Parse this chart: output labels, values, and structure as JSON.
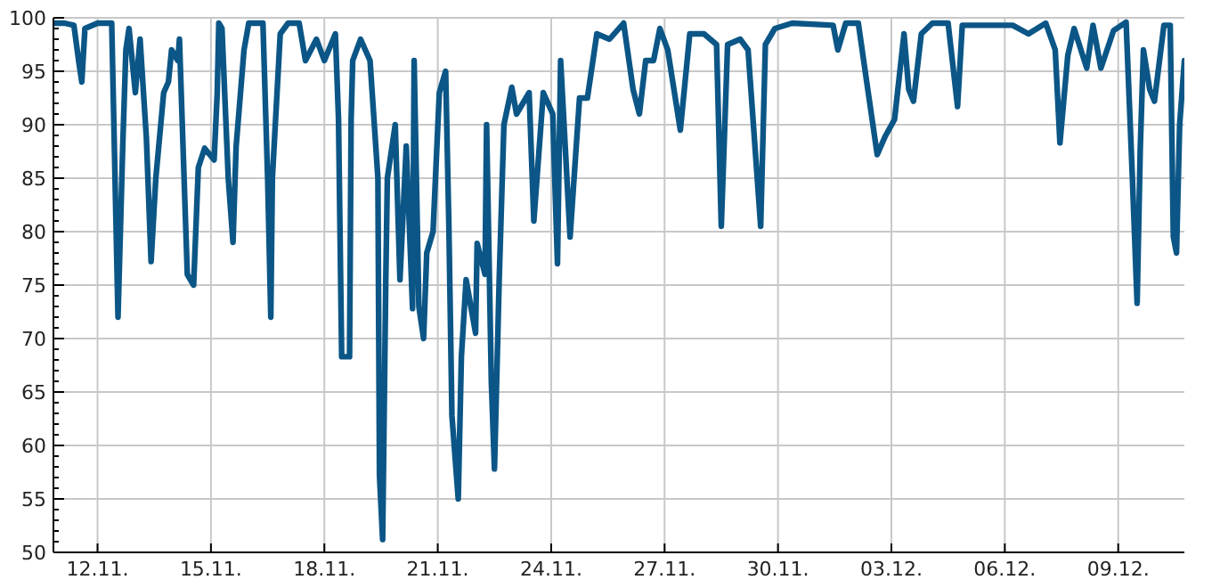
{
  "chart_data": {
    "type": "line",
    "grid": true,
    "marker": "none",
    "line_style": "solid",
    "xlim": [
      "--11-10T20:00",
      "--12-10T18:00"
    ],
    "xticks": [
      {
        "value": "--11-12",
        "label": "12.11."
      },
      {
        "value": "--11-15",
        "label": "15.11."
      },
      {
        "value": "--11-18",
        "label": "18.11."
      },
      {
        "value": "--11-21",
        "label": "21.11."
      },
      {
        "value": "--11-24",
        "label": "24.11."
      },
      {
        "value": "--11-27",
        "label": "27.11."
      },
      {
        "value": "--11-30",
        "label": "30.11."
      },
      {
        "value": "--12-03",
        "label": "03.12."
      },
      {
        "value": "--12-06",
        "label": "06.12."
      },
      {
        "value": "--12-09",
        "label": "09.12."
      }
    ],
    "ylim": [
      50,
      100
    ],
    "yticks": [
      50,
      {
        "value": 51,
        "label": null
      },
      {
        "value": 52,
        "label": null
      },
      {
        "value": 53,
        "label": null
      },
      {
        "value": 54,
        "label": null
      },
      55,
      {
        "value": 56,
        "label": null
      },
      {
        "value": 57,
        "label": null
      },
      {
        "value": 58,
        "label": null
      },
      {
        "value": 59,
        "label": null
      },
      60,
      {
        "value": 61,
        "label": null
      },
      {
        "value": 62,
        "label": null
      },
      {
        "value": 63,
        "label": null
      },
      {
        "value": 64,
        "label": null
      },
      65,
      {
        "value": 66,
        "label": null
      },
      {
        "value": 67,
        "label": null
      },
      {
        "value": 68,
        "label": null
      },
      {
        "value": 69,
        "label": null
      },
      70,
      {
        "value": 71,
        "label": null
      },
      {
        "value": 72,
        "label": null
      },
      {
        "value": 73,
        "label": null
      },
      {
        "value": 74,
        "label": null
      },
      75,
      {
        "value": 76,
        "label": null
      },
      {
        "value": 77,
        "label": null
      },
      {
        "value": 78,
        "label": null
      },
      {
        "value": 79,
        "label": null
      },
      80,
      {
        "value": 81,
        "label": null
      },
      {
        "value": 82,
        "label": null
      },
      {
        "value": 83,
        "label": null
      },
      {
        "value": 84,
        "label": null
      },
      85,
      {
        "value": 86,
        "label": null
      },
      {
        "value": 87,
        "label": null
      },
      {
        "value": 88,
        "label": null
      },
      {
        "value": 89,
        "label": null
      },
      90,
      {
        "value": 91,
        "label": null
      },
      {
        "value": 92,
        "label": null
      },
      {
        "value": 93,
        "label": null
      },
      {
        "value": 94,
        "label": null
      },
      95,
      {
        "value": 96,
        "label": null
      },
      {
        "value": 97,
        "label": null
      },
      {
        "value": 98,
        "label": null
      },
      {
        "value": 99,
        "label": null
      },
      100
    ],
    "series": [
      {
        "color": "#0b5686",
        "x": [
          "--11-10T20:00",
          "--11-11T03:00",
          "--11-11T09:00",
          "--11-11T12:00",
          "--11-11T14:00",
          "--11-11T16:00",
          "--11-12T00:00",
          "--11-12T09:00",
          "--11-12T13:00",
          "--11-12T16:00",
          "--11-12T18:00",
          "--11-12T20:00",
          "--11-13T00:00",
          "--11-13T03:00",
          "--11-13T07:00",
          "--11-13T10:00",
          "--11-13T13:00",
          "--11-13T18:00",
          "--11-13T21:00",
          "--11-13T23:00",
          "--11-14T03:00",
          "--11-14T04:00",
          "--11-14T09:00",
          "--11-14T13:00",
          "--11-14T16:00",
          "--11-14T20:00",
          "--11-15T02:00",
          "--11-15T04:00",
          "--11-15T05:00",
          "--11-15T07:00",
          "--11-15T11:00",
          "--11-15T14:00",
          "--11-15T16:00",
          "--11-15T21:00",
          "--11-16T00:00",
          "--11-16T09:00",
          "--11-16T12:00",
          "--11-16T14:00",
          "--11-16T15:00",
          "--11-16T20:00",
          "--11-17T01:00",
          "--11-17T08:00",
          "--11-17T12:00",
          "--11-17T19:00",
          "--11-18T00:00",
          "--11-18T07:00",
          "--11-18T09:00",
          "--11-18T11:00",
          "--11-18T16:00",
          "--11-18T17:00",
          "--11-18T18:00",
          "--11-18T23:00",
          "--11-19T05:00",
          "--11-19T10:00",
          "--11-19T11:00",
          "--11-19T13:00",
          "--11-19T15:00",
          "--11-19T16:00",
          "--11-19T21:00",
          "--11-20T00:00",
          "--11-20T04:00",
          "--11-20T08:00",
          "--11-20T09:00",
          "--11-20T12:00",
          "--11-20T15:00",
          "--11-20T17:00",
          "--11-20T21:00",
          "--11-21T01:00",
          "--11-21T05:00",
          "--11-21T07:00",
          "--11-21T09:00",
          "--11-21T13:00",
          "--11-21T15:00",
          "--11-21T18:00",
          "--11-22T00:00",
          "--11-22T01:00",
          "--11-22T06:00",
          "--11-22T07:00",
          "--11-22T10:00",
          "--11-22T12:00",
          "--11-22T15:00",
          "--11-22T18:00",
          "--11-22T23:00",
          "--11-23T02:00",
          "--11-23T10:00",
          "--11-23T13:00",
          "--11-23T19:00",
          "--11-24T01:00",
          "--11-24T04:00",
          "--11-24T06:00",
          "--11-24T12:00",
          "--11-24T18:00",
          "--11-24T23:00",
          "--11-25T05:00",
          "--11-25T13:00",
          "--11-25T22:00",
          "--11-26T04:00",
          "--11-26T08:00",
          "--11-26T12:00",
          "--11-26T17:00",
          "--11-26T21:00",
          "--11-27T02:00",
          "--11-27T10:00",
          "--11-27T16:00",
          "--11-28T01:00",
          "--11-28T09:00",
          "--11-28T12:00",
          "--11-28T16:00",
          "--11-29T00:00",
          "--11-29T05:00",
          "--11-29T13:00",
          "--11-29T16:00",
          "--11-29T22:00",
          "--11-30T09:00",
          "--12-01T11:00",
          "--12-01T14:00",
          "--12-01T19:00",
          "--12-02T03:00",
          "--12-02T09:00",
          "--12-02T15:00",
          "--12-02T20:00",
          "--12-03T02:00",
          "--12-03T08:00",
          "--12-03T11:00",
          "--12-03T14:00",
          "--12-03T19:00",
          "--12-04T02:00",
          "--12-04T12:00",
          "--12-04T18:00",
          "--12-04T21:00",
          "--12-05T11:00",
          "--12-06T05:00",
          "--12-06T15:00",
          "--12-07T02:00",
          "--12-07T08:00",
          "--12-07T11:00",
          "--12-07T16:00",
          "--12-07T20:00",
          "--12-08T04:00",
          "--12-08T08:00",
          "--12-08T13:00",
          "--12-08T21:00",
          "--12-09T05:00",
          "--12-09T09:00",
          "--12-09T12:00",
          "--12-09T14:00",
          "--12-09T16:00",
          "--12-09T20:00",
          "--12-09T23:00",
          "--12-10T05:00",
          "--12-10T09:00",
          "--12-10T11:00",
          "--12-10T13:00",
          "--12-10T15:00",
          "--12-10T18:00"
        ],
        "values": [
          99.5,
          99.5,
          99.3,
          96,
          94,
          99,
          99.5,
          99.5,
          72,
          88,
          97,
          99,
          93,
          98,
          88.8,
          77.2,
          85,
          93,
          94,
          97,
          96,
          98,
          76,
          75,
          86,
          87.8,
          86.7,
          93,
          99.5,
          99,
          85,
          79,
          88,
          97,
          99.5,
          99.5,
          85,
          72,
          85,
          98.5,
          99.5,
          99.5,
          96,
          98,
          96,
          98.5,
          90.5,
          68.3,
          68.3,
          90.5,
          96,
          98,
          96,
          85,
          57.2,
          51.2,
          75.5,
          85,
          90,
          75.5,
          88,
          72.8,
          96,
          73,
          70,
          78,
          80,
          93,
          95,
          81,
          62.8,
          55,
          68.3,
          75.5,
          70.5,
          78.9,
          76,
          90,
          66,
          57.8,
          75.5,
          90,
          93.5,
          91,
          93,
          81,
          93,
          91,
          77,
          96,
          79.5,
          92.5,
          92.5,
          98.5,
          98,
          99.5,
          93.3,
          91,
          96,
          96,
          99,
          97,
          89.5,
          98.5,
          98.5,
          97.5,
          80.5,
          97.5,
          98,
          97,
          80.5,
          97.5,
          99,
          99.5,
          99.3,
          97,
          99.5,
          99.5,
          93.3,
          87.2,
          88.9,
          90.5,
          98.5,
          93.3,
          92.2,
          98.5,
          99.5,
          99.5,
          91.7,
          99.3,
          99.3,
          99.3,
          98.5,
          99.5,
          97,
          88.3,
          96.5,
          99,
          95.3,
          99.3,
          95.3,
          98.8,
          99.6,
          85,
          73.3,
          87.8,
          97,
          93.3,
          92.2,
          99.3,
          99.3,
          79.5,
          78,
          90,
          96
        ]
      }
    ]
  }
}
